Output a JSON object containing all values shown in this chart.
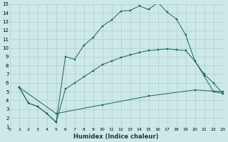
{
  "xlabel": "Humidex (Indice chaleur)",
  "xlim": [
    0,
    23
  ],
  "ylim": [
    1,
    15
  ],
  "background_color": "#cce8e8",
  "grid_color": "#b0cccc",
  "line_color": "#1a6655",
  "line1_x": [
    1,
    2,
    3,
    4,
    5,
    6,
    7,
    8,
    9,
    10,
    11,
    12,
    13,
    14,
    15,
    16,
    17,
    18,
    19,
    20,
    21,
    22,
    23
  ],
  "line1_y": [
    5.5,
    3.7,
    3.3,
    2.5,
    1.5,
    9.0,
    8.7,
    10.3,
    11.2,
    12.5,
    13.2,
    14.2,
    14.3,
    14.8,
    14.4,
    15.2,
    14.1,
    13.3,
    11.5,
    8.5,
    6.8,
    5.0,
    4.8
  ],
  "line2_x": [
    1,
    2,
    3,
    4,
    5,
    6,
    7,
    8,
    9,
    10,
    11,
    12,
    13,
    14,
    15,
    16,
    17,
    18,
    19,
    20,
    21,
    22,
    23
  ],
  "line2_y": [
    5.5,
    3.7,
    3.3,
    2.5,
    1.5,
    5.3,
    6.0,
    6.7,
    7.4,
    8.1,
    8.5,
    8.9,
    9.2,
    9.5,
    9.7,
    9.8,
    9.9,
    9.8,
    9.7,
    8.5,
    7.0,
    6.0,
    4.8
  ],
  "line3_x": [
    1,
    5,
    10,
    15,
    20,
    23
  ],
  "line3_y": [
    5.5,
    2.5,
    3.5,
    4.5,
    5.2,
    5.0
  ],
  "xtick_labels": [
    "0",
    "1",
    "2",
    "3",
    "4",
    "5",
    "6",
    "7",
    "8",
    "9",
    "10",
    "11",
    "12",
    "13",
    "14",
    "15",
    "16",
    "17",
    "18",
    "19",
    "20",
    "21",
    "22",
    "23"
  ],
  "ytick_labels": [
    "1",
    "2",
    "3",
    "4",
    "5",
    "6",
    "7",
    "8",
    "9",
    "10",
    "11",
    "12",
    "13",
    "14",
    "15"
  ]
}
